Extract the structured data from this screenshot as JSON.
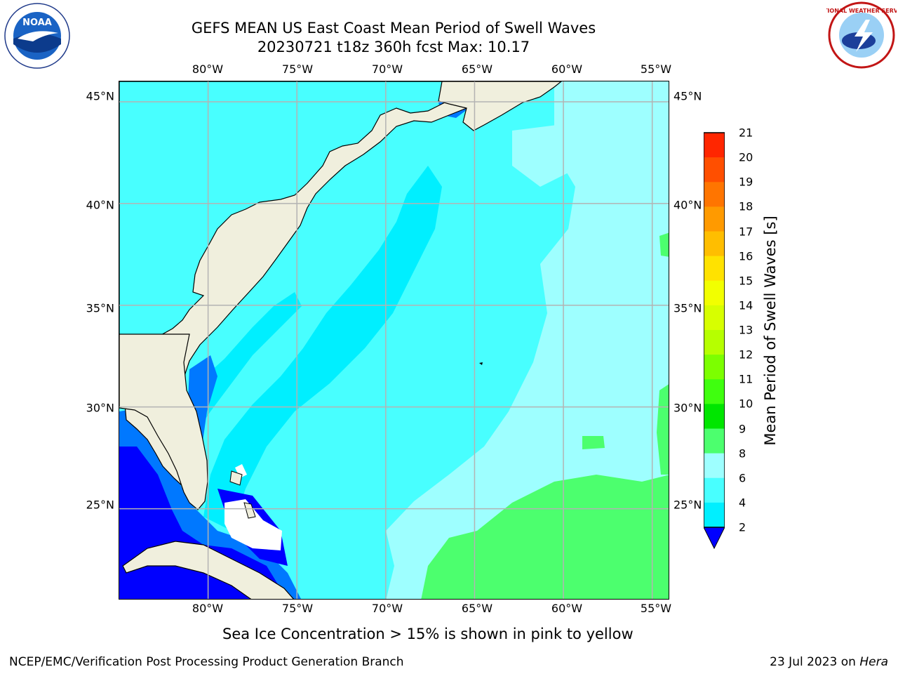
{
  "header": {
    "title_line1": "GEFS MEAN US East Coast Mean Period of Swell Waves",
    "title_line2": "20230721 t18z 360h fcst   Max: 10.17"
  },
  "map": {
    "type": "contour",
    "x_ticks": [
      "80°W",
      "75°W",
      "70°W",
      "65°W",
      "60°W",
      "55°W"
    ],
    "y_ticks": [
      "45°N",
      "40°N",
      "35°N",
      "30°N",
      "25°N"
    ],
    "lon_range": [
      -85,
      -54
    ],
    "lat_range": [
      20.5,
      46
    ],
    "grid": true
  },
  "colorbar": {
    "label": "Mean Period of Swell Waves [s]",
    "levels": [
      "21",
      "20",
      "19",
      "18",
      "17",
      "16",
      "15",
      "14",
      "13",
      "12",
      "11",
      "10",
      "9",
      "8",
      "6",
      "4",
      "2"
    ],
    "colors": [
      "#ff0000",
      "#ff2600",
      "#ff4f00",
      "#ff7500",
      "#ff9a00",
      "#ffbe00",
      "#ffe200",
      "#f2ff00",
      "#d7ff00",
      "#b6ff00",
      "#7cff00",
      "#3fff0f",
      "#00e600",
      "#4cff6e",
      "#9effff",
      "#48ffff",
      "#00efff",
      "#0078ff",
      "#0000ff"
    ]
  },
  "note": "Sea Ice Concentration > 15% is shown in pink to yellow",
  "footer": {
    "left": "NCEP/EMC/Verification Post Processing Product Generation Branch",
    "date": "23 Jul 2023 on",
    "host": "Hera"
  },
  "logos": {
    "left_icon": "noaa-logo",
    "left_text": "NOAA",
    "right_icon": "nws-logo",
    "right_text": "NATIONAL WEATHER SERVICE"
  }
}
